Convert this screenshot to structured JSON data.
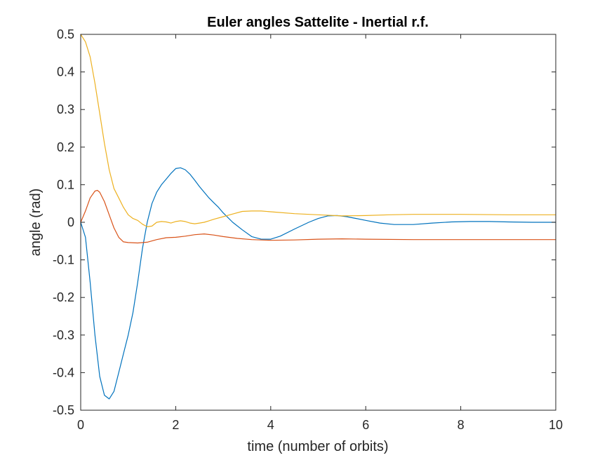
{
  "chart_data": {
    "type": "line",
    "title": "Euler angles Sattelite - Inertial r.f.",
    "xlabel": "time (number of orbits)",
    "ylabel": "angle (rad)",
    "xlim": [
      0,
      10
    ],
    "ylim": [
      -0.5,
      0.5
    ],
    "xticks": [
      0,
      2,
      4,
      6,
      8,
      10
    ],
    "xtick_labels": [
      "0",
      "2",
      "4",
      "6",
      "8",
      "10"
    ],
    "yticks": [
      -0.5,
      -0.4,
      -0.3,
      -0.2,
      -0.1,
      0,
      0.1,
      0.2,
      0.3,
      0.4,
      0.5
    ],
    "ytick_labels": [
      "-0.5",
      "-0.4",
      "-0.3",
      "-0.2",
      "-0.1",
      "0",
      "0.1",
      "0.2",
      "0.3",
      "0.4",
      "0.5"
    ],
    "grid": false,
    "legend": "none",
    "series": [
      {
        "color": "#0072BD",
        "x": [
          0,
          0.1,
          0.2,
          0.3,
          0.4,
          0.5,
          0.6,
          0.7,
          0.8,
          0.9,
          1.0,
          1.1,
          1.2,
          1.3,
          1.4,
          1.5,
          1.6,
          1.7,
          1.8,
          1.9,
          2.0,
          2.1,
          2.2,
          2.3,
          2.4,
          2.5,
          2.6,
          2.7,
          2.8,
          2.9,
          3.0,
          3.2,
          3.4,
          3.6,
          3.8,
          4.0,
          4.2,
          4.5,
          4.8,
          5.0,
          5.2,
          5.4,
          5.6,
          5.8,
          6.0,
          6.3,
          6.6,
          7.0,
          7.4,
          7.8,
          8.2,
          8.6,
          9.0,
          9.5,
          10.0
        ],
        "y": [
          0,
          -0.04,
          -0.16,
          -0.3,
          -0.41,
          -0.46,
          -0.47,
          -0.45,
          -0.4,
          -0.35,
          -0.3,
          -0.24,
          -0.16,
          -0.07,
          0.0,
          0.05,
          0.08,
          0.1,
          0.115,
          0.13,
          0.143,
          0.145,
          0.14,
          0.128,
          0.112,
          0.095,
          0.08,
          0.065,
          0.052,
          0.04,
          0.025,
          0.0,
          -0.02,
          -0.038,
          -0.045,
          -0.045,
          -0.037,
          -0.018,
          0.0,
          0.01,
          0.017,
          0.018,
          0.015,
          0.01,
          0.005,
          -0.002,
          -0.006,
          -0.006,
          -0.002,
          0.001,
          0.002,
          0.002,
          0.001,
          0.0,
          0.0
        ]
      },
      {
        "color": "#D95319",
        "x": [
          0,
          0.1,
          0.2,
          0.3,
          0.35,
          0.4,
          0.5,
          0.6,
          0.7,
          0.8,
          0.9,
          1.0,
          1.2,
          1.4,
          1.6,
          1.8,
          2.0,
          2.2,
          2.4,
          2.6,
          2.8,
          3.0,
          3.3,
          3.6,
          4.0,
          4.5,
          5.0,
          5.5,
          6.0,
          7.0,
          8.0,
          9.0,
          10.0
        ],
        "y": [
          0,
          0.03,
          0.065,
          0.083,
          0.085,
          0.08,
          0.055,
          0.02,
          -0.015,
          -0.04,
          -0.052,
          -0.054,
          -0.055,
          -0.053,
          -0.046,
          -0.041,
          -0.04,
          -0.037,
          -0.033,
          -0.031,
          -0.034,
          -0.038,
          -0.043,
          -0.046,
          -0.048,
          -0.047,
          -0.045,
          -0.044,
          -0.045,
          -0.046,
          -0.046,
          -0.046,
          -0.046
        ]
      },
      {
        "color": "#EDB120",
        "x": [
          0,
          0.1,
          0.2,
          0.3,
          0.4,
          0.5,
          0.6,
          0.7,
          0.8,
          0.9,
          1.0,
          1.1,
          1.2,
          1.3,
          1.4,
          1.5,
          1.6,
          1.7,
          1.8,
          1.9,
          2.0,
          2.1,
          2.2,
          2.3,
          2.4,
          2.5,
          2.6,
          2.7,
          2.8,
          3.0,
          3.2,
          3.4,
          3.6,
          3.8,
          4.0,
          4.5,
          5.0,
          5.5,
          6.0,
          6.5,
          7.0,
          8.0,
          9.0,
          10.0
        ],
        "y": [
          0.5,
          0.48,
          0.44,
          0.37,
          0.29,
          0.21,
          0.14,
          0.09,
          0.065,
          0.04,
          0.02,
          0.01,
          0.005,
          -0.005,
          -0.012,
          -0.01,
          0.0,
          0.002,
          0.001,
          -0.002,
          0.002,
          0.004,
          0.002,
          -0.002,
          -0.004,
          -0.002,
          0.0,
          0.004,
          0.008,
          0.015,
          0.022,
          0.029,
          0.03,
          0.03,
          0.028,
          0.023,
          0.02,
          0.017,
          0.018,
          0.02,
          0.021,
          0.021,
          0.02,
          0.02
        ]
      }
    ]
  }
}
